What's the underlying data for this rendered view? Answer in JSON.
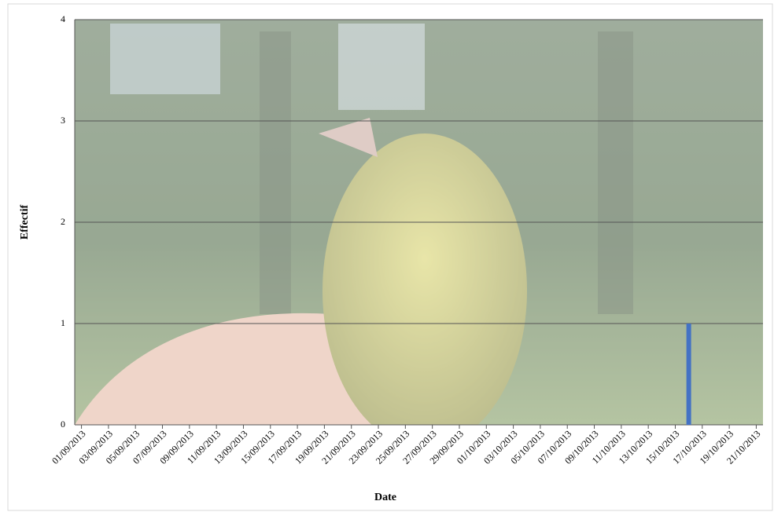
{
  "chart_data": {
    "type": "bar",
    "x_label": "Date",
    "y_label": "Effectif",
    "categories": [
      "01/09/2013",
      null,
      "03/09/2013",
      null,
      "05/09/2013",
      null,
      "07/09/2013",
      null,
      "09/09/2013",
      null,
      "11/09/2013",
      null,
      "13/09/2013",
      null,
      "15/09/2013",
      null,
      "17/09/2013",
      null,
      "19/09/2013",
      null,
      "21/09/2013",
      null,
      "23/09/2013",
      null,
      "25/09/2013",
      null,
      "27/09/2013",
      null,
      "29/09/2013",
      null,
      "01/10/2013",
      null,
      "03/10/2013",
      null,
      "05/10/2013",
      null,
      "07/10/2013",
      null,
      "09/10/2013",
      null,
      "11/10/2013",
      null,
      "13/10/2013",
      null,
      "15/10/2013",
      null,
      "17/10/2013",
      null,
      "19/10/2013",
      null,
      "21/10/2013"
    ],
    "values": [
      0,
      0,
      0,
      0,
      0,
      0,
      0,
      0,
      0,
      0,
      0,
      0,
      0,
      0,
      0,
      0,
      0,
      0,
      0,
      0,
      0,
      0,
      0,
      0,
      0,
      0,
      0,
      0,
      0,
      0,
      0,
      0,
      0,
      0,
      0,
      0,
      0,
      0,
      0,
      0,
      0,
      0,
      0,
      0,
      0,
      1,
      0,
      0,
      0,
      0,
      0
    ],
    "color": "#4472c4",
    "ylim": [
      0,
      4
    ],
    "yticks": [
      0,
      1,
      2,
      3,
      4
    ],
    "grid": true
  }
}
